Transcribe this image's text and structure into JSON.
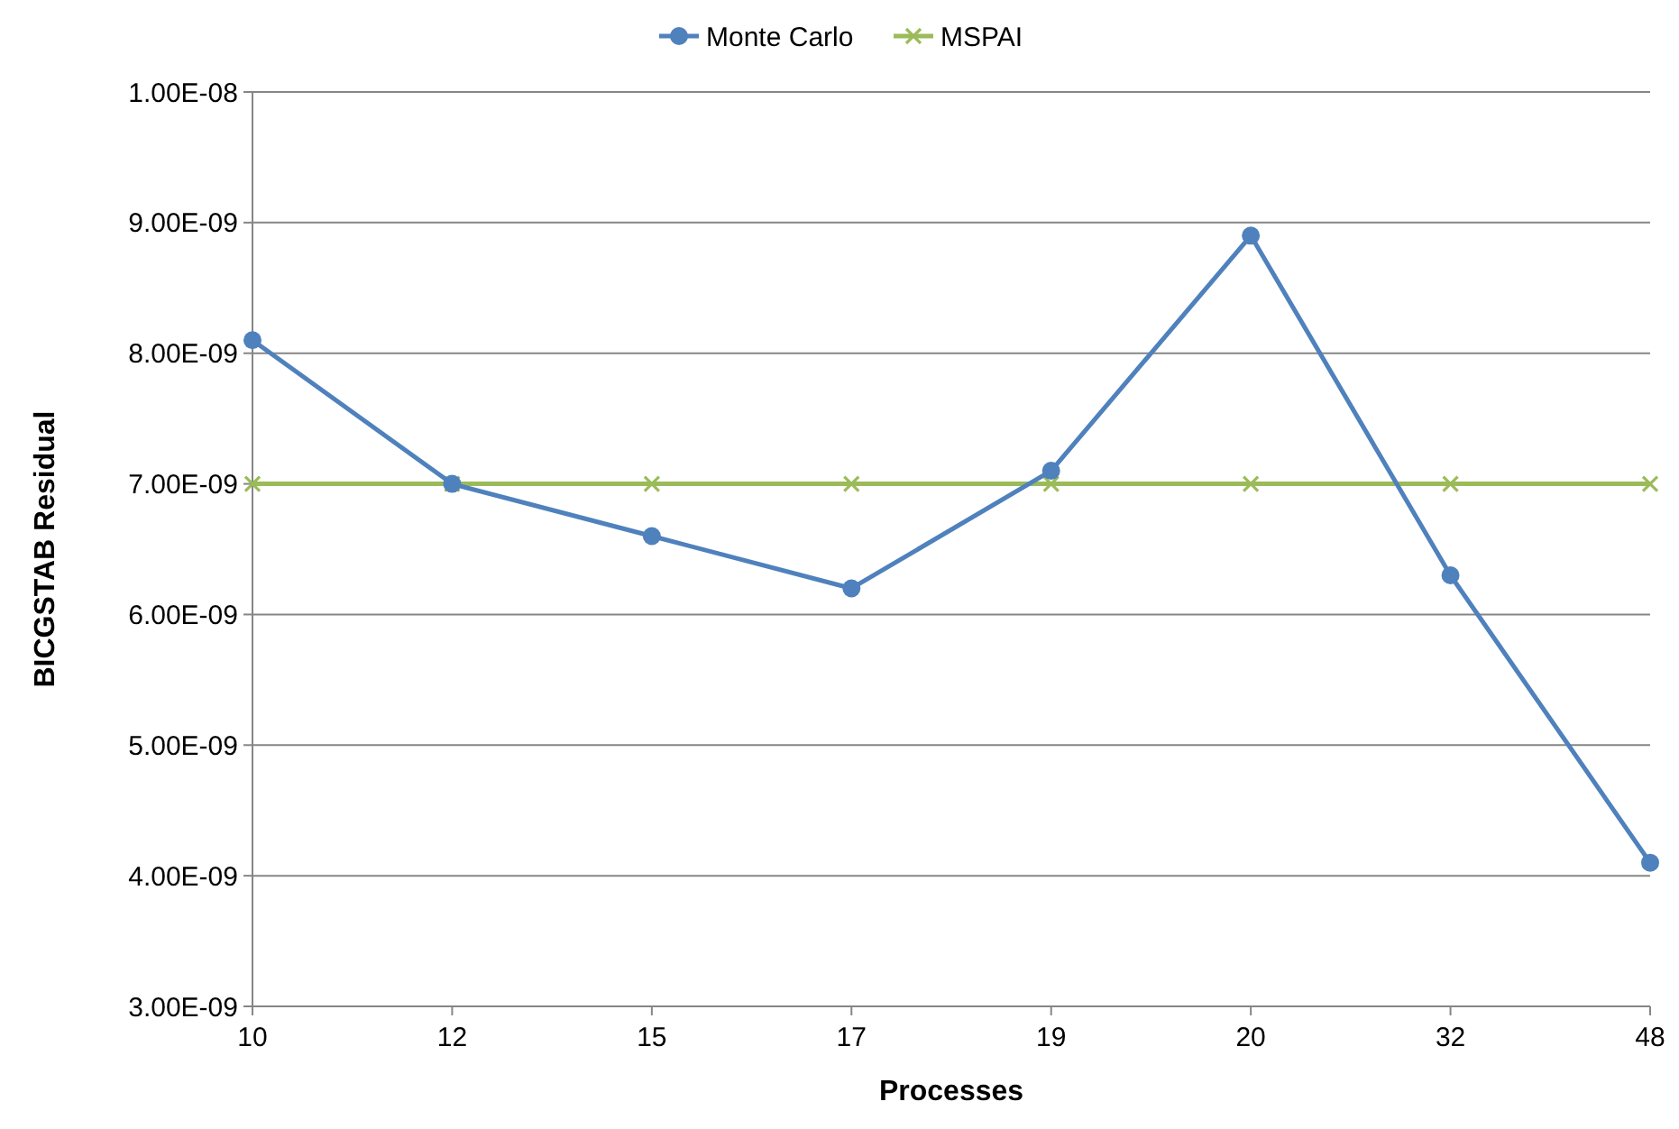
{
  "chart_data": {
    "type": "line",
    "xlabel": "Processes",
    "ylabel": "BICGSTAB Residual",
    "categories": [
      "10",
      "12",
      "15",
      "17",
      "19",
      "20",
      "32",
      "48"
    ],
    "series": [
      {
        "name": "Monte Carlo",
        "color": "#4f81bd",
        "marker": "circle",
        "values": [
          8.1e-09,
          7e-09,
          6.6e-09,
          6.2e-09,
          7.1e-09,
          8.9e-09,
          6.3e-09,
          4.1e-09
        ]
      },
      {
        "name": "MSPAI",
        "color": "#9bbb59",
        "marker": "cross",
        "values": [
          7e-09,
          7e-09,
          7e-09,
          7e-09,
          7e-09,
          7e-09,
          7e-09,
          7e-09
        ]
      }
    ],
    "ylim": [
      3e-09,
      1e-08
    ],
    "yticks": [
      {
        "value": 3e-09,
        "label": "3.00E-09"
      },
      {
        "value": 4e-09,
        "label": "4.00E-09"
      },
      {
        "value": 5e-09,
        "label": "5.00E-09"
      },
      {
        "value": 6e-09,
        "label": "6.00E-09"
      },
      {
        "value": 7e-09,
        "label": "7.00E-09"
      },
      {
        "value": 8e-09,
        "label": "8.00E-09"
      },
      {
        "value": 9e-09,
        "label": "9.00E-09"
      },
      {
        "value": 1e-08,
        "label": "1.00E-08"
      }
    ],
    "grid": "y",
    "legend": "top",
    "line_style": "solid"
  }
}
